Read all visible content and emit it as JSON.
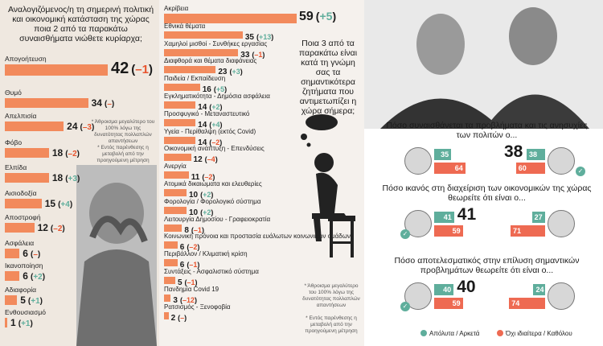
{
  "colors": {
    "bar": "#f28a5c",
    "positive_change": "#5fae9c",
    "negative_change": "#e8542e",
    "good": "#5fae9c",
    "bad": "#ee6a52"
  },
  "chart_data": [
    {
      "type": "bar",
      "title": "Αναλογιζόμενος/η τη σημερινή πολιτική και οικονομική κατάσταση της χώρας ποια 2 από τα παρακάτω συναισθήματα νιώθετε κυρίαρχα;",
      "categories": [
        "Απογοήτευση",
        "Θυμό",
        "Απελπισία",
        "Φόβο",
        "Ελπίδα",
        "Αισιοδοξία",
        "Αποστροφή",
        "Ασφάλεια",
        "Ικανοποίηση",
        "Αδιαφορία",
        "Ενθουσιασμό"
      ],
      "values": [
        42,
        34,
        24,
        18,
        18,
        15,
        12,
        6,
        6,
        5,
        1
      ],
      "changes": [
        "–1",
        "–",
        "–3",
        "–2",
        "+3",
        "+4",
        "–2",
        "–",
        "+2",
        "+1",
        "+1"
      ],
      "notes": [
        "* Άθροισμα μεγαλύτερο του 100% λόγω της δυνατότητας πολλαπλών απαντήσεων",
        "* Εντός παρένθεσης η μεταβολή από την προηγούμενη μέτρηση"
      ]
    },
    {
      "type": "bar",
      "title": "Ποια 3 από τα παρακάτω είναι κατά τη γνώμη σας τα σημαντικότερα ζητήματα που αντιμετωπίζει η χώρα σήμερα;",
      "categories": [
        "Ακρίβεια",
        "Εθνικά θέματα",
        "Χαμηλοί μισθοί - Συνθήκες εργασίας",
        "Διαφθορά και θέματα διαφάνειας",
        "Παιδεία / Εκπαίδευση",
        "Εγκληματικότητα - Δημόσια ασφάλεια",
        "Προσφυγικό - Μεταναστευτικό",
        "Υγεία - Περίθαλψη (εκτός Covid)",
        "Οικονομική ανάπτυξη - Επενδύσεις",
        "Ανεργία",
        "Ατομικά δικαιώματα και ελευθερίες",
        "Φορολογία / Φορολογικό σύστημα",
        "Λειτουργία Δημοσίου - Γραφειοκρατία",
        "Κοινωνική πρόνοια και προστασία ευάλωτων κοινωνικών ομάδων",
        "Περιβάλλον / Κλιματική κρίση",
        "Συντάξεις - Ασφαλιστικό σύστημα",
        "Πανδημία Covid 19",
        "Ρατσισμός - Ξενοφοβία"
      ],
      "values": [
        59,
        35,
        33,
        23,
        16,
        14,
        14,
        14,
        12,
        11,
        10,
        10,
        8,
        6,
        6,
        5,
        3,
        2
      ],
      "changes": [
        "+5",
        "+13",
        "–1",
        "+3",
        "+5",
        "+2",
        "+4",
        "–2",
        "–4",
        "–2",
        "+2",
        "+2",
        "–1",
        "–2",
        "–1",
        "–1",
        "–12",
        "–"
      ],
      "notes": [
        "* Άθροισμα μεγαλύτερο του 100% λόγω της δυνατότητας πολλαπλών απαντήσεων",
        "* Εντός παρένθεσης η μεταβολή από την προηγούμενη μέτρηση"
      ]
    },
    {
      "type": "bar",
      "legend": [
        "Απόλυτα / Αρκετά",
        "Όχι ιδιαίτερα / Καθόλου"
      ],
      "legend_placement": "bottom",
      "questions": [
        {
          "title": "Πόσο συναισθάνεται τα προβλήματα και τις ανησυχίες των πολιτών ο...",
          "left": [
            35,
            64
          ],
          "right": [
            38,
            60
          ],
          "big_value": "38",
          "checked": "right"
        },
        {
          "title": "Πόσο ικανός στη διαχείριση των οικονομικών της χώρας θεωρείτε ότι είναι ο...",
          "left": [
            41,
            59
          ],
          "right": [
            27,
            71
          ],
          "big_value": "41",
          "checked": "left"
        },
        {
          "title": "Πόσο αποτελεσματικός στην επίλυση σημαντικών προβλημάτων θεωρείτε ότι είναι ο...",
          "left": [
            40,
            59
          ],
          "right": [
            24,
            74
          ],
          "big_value": "40",
          "checked": "left"
        }
      ]
    }
  ]
}
